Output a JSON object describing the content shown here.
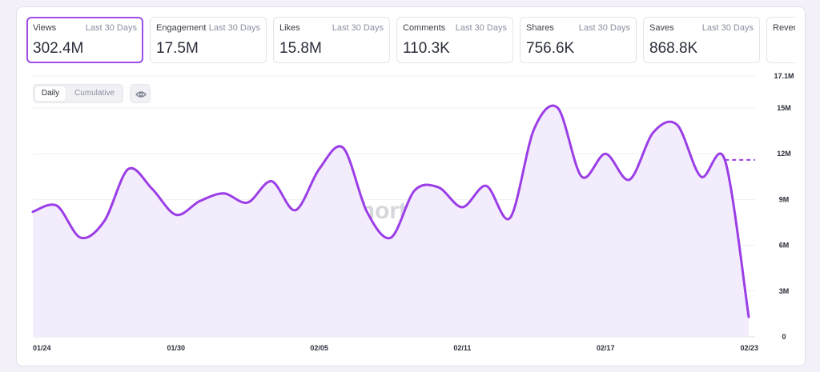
{
  "metrics": [
    {
      "label": "Views",
      "period": "Last 30 Days",
      "value": "302.4M"
    },
    {
      "label": "Engagement",
      "period": "Last 30 Days",
      "value": "17.5M"
    },
    {
      "label": "Likes",
      "period": "Last 30 Days",
      "value": "15.8M"
    },
    {
      "label": "Comments",
      "period": "Last 30 Days",
      "value": "110.3K"
    },
    {
      "label": "Shares",
      "period": "Last 30 Days",
      "value": "756.6K"
    },
    {
      "label": "Saves",
      "period": "Last 30 Days",
      "value": "868.8K"
    },
    {
      "label": "Revenue",
      "period": "",
      "value": ""
    }
  ],
  "view_toggle": {
    "daily": "Daily",
    "cumulative": "Cumulative",
    "selected": "Daily"
  },
  "watermark": "shortimize",
  "colors": {
    "accent": "#9b4de8",
    "line": "#9b3ee6",
    "fill": "#f3ecfc"
  },
  "icons": {
    "visibility": "eye-icon",
    "watermark_logo": "shortimize-logo-icon"
  },
  "chart_data": {
    "type": "area",
    "title": "",
    "xlabel": "",
    "ylabel": "",
    "y_axis_position": "right",
    "ylim": [
      0,
      17100000
    ],
    "y_ticks": [
      0,
      3000000,
      6000000,
      9000000,
      12000000,
      15000000,
      17100000
    ],
    "y_tick_labels": [
      "0",
      "3M",
      "6M",
      "9M",
      "12M",
      "15M",
      "17.1M"
    ],
    "x_tick_labels": [
      "01/24",
      "01/30",
      "02/05",
      "02/11",
      "02/17",
      "02/23"
    ],
    "x_tick_indices": [
      0,
      6,
      12,
      18,
      24,
      30
    ],
    "grid": true,
    "series": [
      {
        "x": [
          "01/24",
          "01/25",
          "01/26",
          "01/27",
          "01/28",
          "01/29",
          "01/30",
          "01/31",
          "02/01",
          "02/02",
          "02/03",
          "02/04",
          "02/05",
          "02/06",
          "02/07",
          "02/08",
          "02/09",
          "02/10",
          "02/11",
          "02/12",
          "02/13",
          "02/14",
          "02/15",
          "02/16",
          "02/17",
          "02/18",
          "02/19",
          "02/20",
          "02/21",
          "02/22",
          "02/23"
        ],
        "values": [
          8200000,
          8600000,
          6500000,
          7600000,
          11000000,
          9700000,
          8000000,
          8900000,
          9400000,
          8800000,
          10200000,
          8300000,
          11000000,
          12400000,
          8200000,
          6500000,
          9600000,
          9800000,
          8500000,
          9900000,
          7800000,
          13600000,
          15000000,
          10500000,
          12000000,
          10300000,
          13400000,
          13900000,
          10500000,
          11600000,
          1300000
        ],
        "projected_value": 11600000
      }
    ]
  }
}
